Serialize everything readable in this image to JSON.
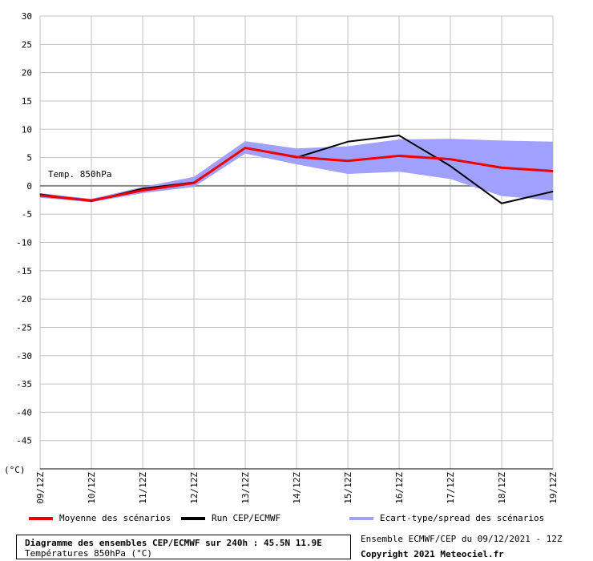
{
  "chart_data": {
    "type": "line",
    "unit_label": "(°C)",
    "annotation": "Temp. 850hPa",
    "categories": [
      "09/12Z",
      "10/12Z",
      "11/12Z",
      "12/12Z",
      "13/12Z",
      "14/12Z",
      "15/12Z",
      "16/12Z",
      "17/12Z",
      "18/12Z",
      "19/12Z"
    ],
    "ylim": [
      -50,
      30
    ],
    "yticks": [
      30,
      25,
      20,
      15,
      10,
      5,
      0,
      -5,
      -10,
      -15,
      -20,
      -25,
      -30,
      -35,
      -40,
      -45
    ],
    "grid": true,
    "series": [
      {
        "name": "Moyenne des scénarios",
        "color": "#ee0000",
        "kind": "line",
        "values": [
          -1.7,
          -2.6,
          -0.8,
          0.5,
          6.7,
          5.1,
          4.4,
          5.3,
          4.7,
          3.2,
          2.6
        ]
      },
      {
        "name": "Run CEP/ECMWF",
        "color": "#000000",
        "kind": "line",
        "values": [
          -1.5,
          -2.7,
          -0.5,
          0.6,
          6.7,
          5.0,
          7.8,
          8.9,
          3.5,
          -3.1,
          -1.0
        ]
      },
      {
        "name": "Ecart-type/spread des scénarios",
        "color": "#a0a0ff",
        "kind": "band",
        "upper": [
          -1.3,
          -2.3,
          -0.2,
          1.6,
          7.9,
          6.6,
          7.0,
          8.2,
          8.3,
          8.0,
          7.8
        ],
        "lower": [
          -2.1,
          -2.9,
          -1.3,
          -0.2,
          5.7,
          3.8,
          2.1,
          2.5,
          1.2,
          -1.8,
          -2.6
        ]
      }
    ]
  },
  "legend": {
    "mean": "Moyenne des scénarios",
    "run": "Run CEP/ECMWF",
    "spread": "Ecart-type/spread des scénarios",
    "colors": {
      "mean": "#ee0000",
      "run": "#000000",
      "spread": "#a0a0ff"
    }
  },
  "footer": {
    "title": "Diagramme des ensembles CEP/ECMWF sur 240h : 45.5N 11.9E",
    "subtitle": "Températures 850hPa (°C)",
    "run_info": "Ensemble ECMWF/CEP du 09/12/2021 - 12Z",
    "copyright": "Copyright 2021 Meteociel.fr"
  }
}
